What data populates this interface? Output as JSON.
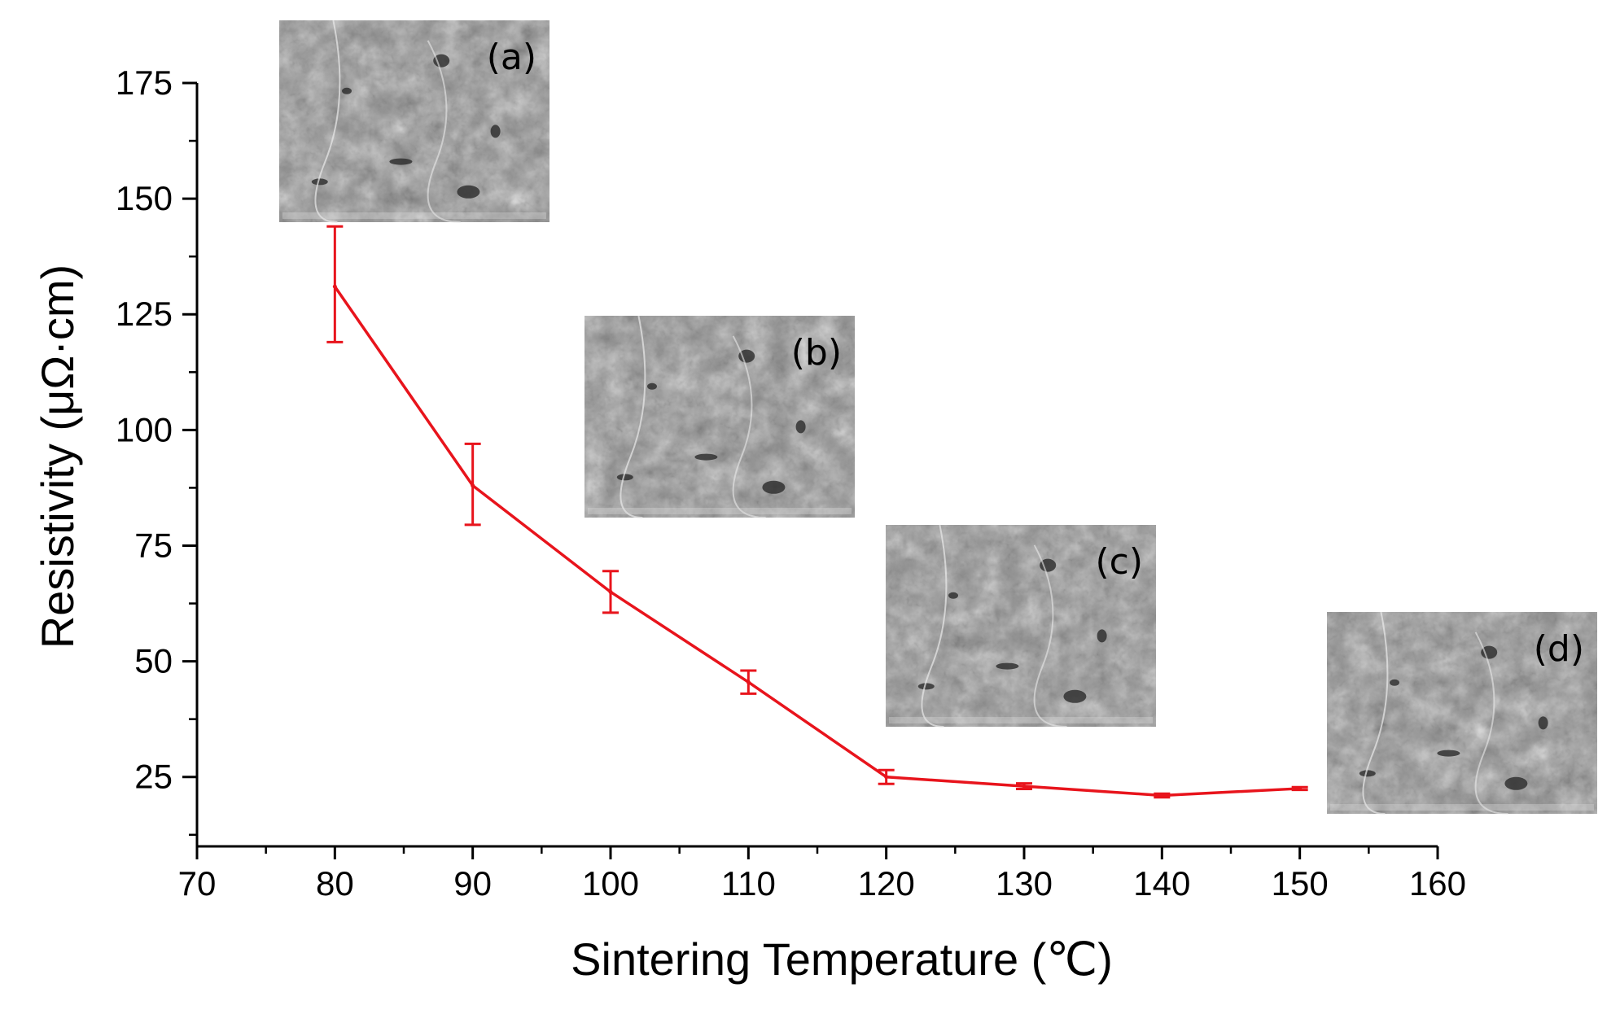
{
  "chart_data": {
    "type": "line",
    "title": "",
    "xlabel": "Sintering Temperature (℃)",
    "ylabel": "Resistivity (μΩ·cm)",
    "xlim": [
      70,
      160
    ],
    "ylim": [
      10,
      180
    ],
    "x_ticks": [
      70,
      80,
      90,
      100,
      110,
      120,
      130,
      140,
      150,
      160
    ],
    "x_tick_labels": [
      "70",
      "80",
      "90",
      "100",
      "110",
      "120",
      "130",
      "140",
      "150",
      "160"
    ],
    "y_ticks": [
      25,
      50,
      75,
      100,
      125,
      150,
      175
    ],
    "y_tick_labels": [
      "25",
      "50",
      "75",
      "100",
      "125",
      "150",
      "175"
    ],
    "grid": false,
    "color": "#e8141c",
    "series": [
      {
        "name": "Resistivity",
        "x": [
          80,
          90,
          100,
          110,
          120,
          130,
          140,
          150
        ],
        "y": [
          131,
          88,
          65,
          45.5,
          25,
          23,
          21,
          22.5
        ],
        "y_err_low": [
          12,
          8.5,
          4.5,
          2.5,
          1.5,
          0.6,
          0.4,
          0.3
        ],
        "y_err_high": [
          13,
          9,
          4.5,
          2.5,
          1.5,
          0.6,
          0.4,
          0.3
        ]
      }
    ],
    "insets": [
      {
        "label": "(a)",
        "description": "SEM micrograph",
        "x": 80
      },
      {
        "label": "(b)",
        "description": "SEM micrograph",
        "x": 100
      },
      {
        "label": "(c)",
        "description": "SEM micrograph",
        "x": 120
      },
      {
        "label": "(d)",
        "description": "SEM micrograph",
        "x": 150
      }
    ]
  }
}
